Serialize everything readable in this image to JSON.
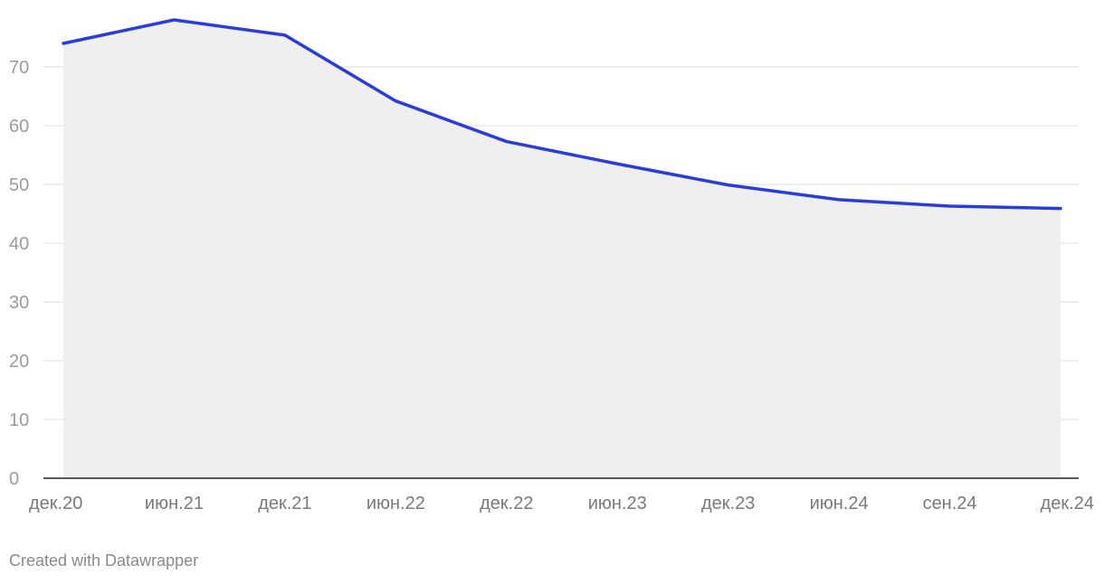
{
  "chart_data": {
    "type": "area",
    "title": "",
    "xlabel": "",
    "ylabel": "",
    "categories": [
      "дек.20",
      "июн.21",
      "дек.21",
      "июн.22",
      "дек.22",
      "июн.23",
      "дек.23",
      "июн.24",
      "сен.24",
      "дек.24"
    ],
    "series": [
      {
        "values": [
          74,
          78,
          75.4,
          64.2,
          57.3,
          53.5,
          49.9,
          47.4,
          46.3,
          45.9
        ]
      }
    ],
    "ylim": [
      0,
      80
    ],
    "yticks": [
      0,
      10,
      20,
      30,
      40,
      50,
      60,
      70
    ],
    "grid": true,
    "legend": "none",
    "colors": {
      "line": "#2b3dd8",
      "area": "#efefef",
      "grid": "#e3e3e3",
      "baseline": "#222222",
      "ytick_text": "#9b9b9b",
      "xtick_text": "#7a7a7a"
    }
  },
  "footer": {
    "credit": "Created with Datawrapper"
  }
}
